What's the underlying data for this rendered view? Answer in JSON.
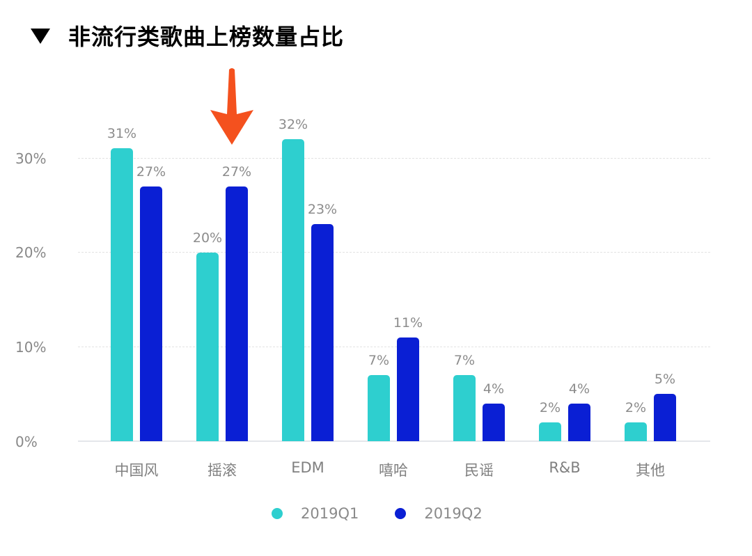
{
  "header": {
    "collapse_icon": "triangle-down-icon",
    "title": "非流行类歌曲上榜数量占比"
  },
  "annotation": {
    "icon": "arrow-down-icon",
    "color": "#f4511e",
    "points_to": "摇滚"
  },
  "chart_data": {
    "type": "bar",
    "title": "非流行类歌曲上榜数量占比",
    "xlabel": "",
    "ylabel": "",
    "categories": [
      "中国风",
      "摇滚",
      "EDM",
      "嘻哈",
      "民谣",
      "R&B",
      "其他"
    ],
    "series": [
      {
        "name": "2019Q1",
        "color": "#2ecfcf",
        "values": [
          31,
          20,
          32,
          7,
          7,
          2,
          2
        ],
        "labels": [
          "31%",
          "20%",
          "32%",
          "7%",
          "7%",
          "2%",
          "2%"
        ]
      },
      {
        "name": "2019Q2",
        "color": "#0a1fd4",
        "values": [
          27,
          27,
          23,
          11,
          4,
          4,
          5
        ],
        "labels": [
          "27%",
          "27%",
          "23%",
          "11%",
          "4%",
          "4%",
          "5%"
        ]
      }
    ],
    "yticks": [
      "0%",
      "10%",
      "20%",
      "30%"
    ],
    "ylim": [
      0,
      30
    ],
    "grid": true,
    "legend_position": "bottom"
  },
  "legend": {
    "items": [
      {
        "label": "2019Q1",
        "color": "#2ecfcf"
      },
      {
        "label": "2019Q2",
        "color": "#0a1fd4"
      }
    ]
  }
}
